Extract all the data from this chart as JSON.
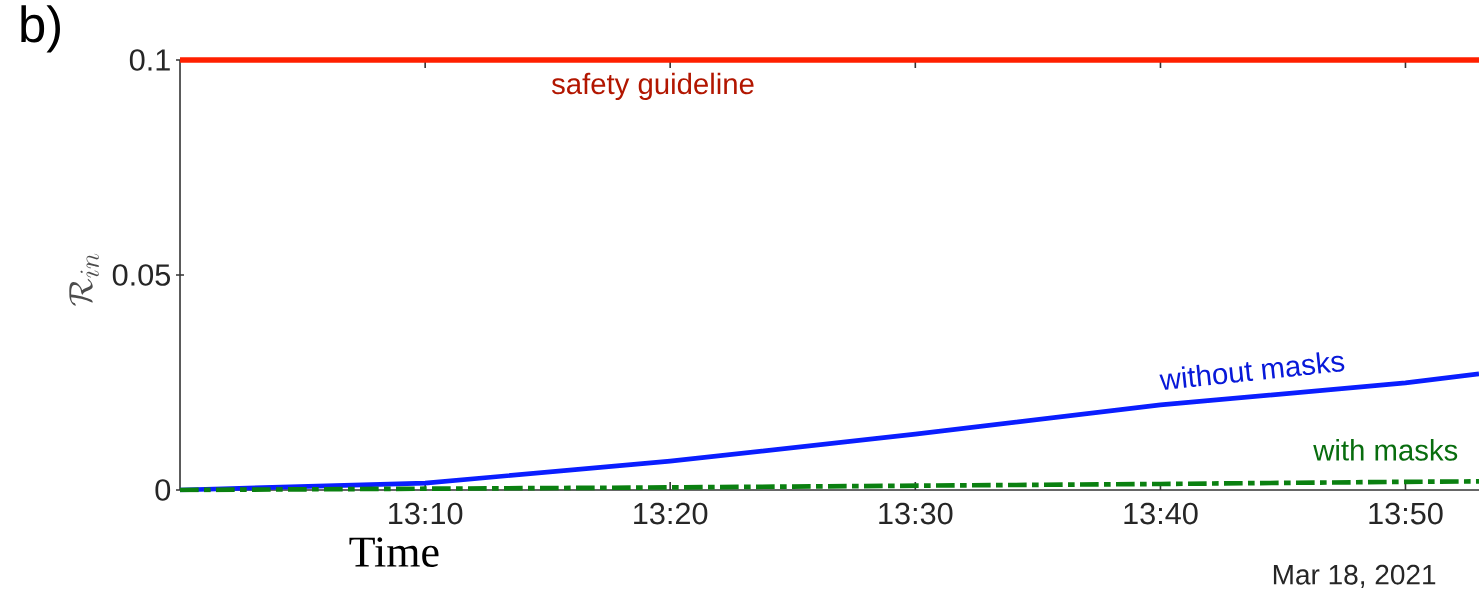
{
  "chart_data": {
    "type": "line",
    "xlabel": "Time",
    "ylabel": "\\mathcal{R}_{in}",
    "x": [
      13.0,
      13.1667,
      13.3333,
      13.5,
      13.6667,
      13.8333,
      13.8833
    ],
    "series": [
      {
        "name": "without masks",
        "color": "#0a1eff",
        "line_style": "solid",
        "values": [
          0,
          0.0016,
          0.0067,
          0.013,
          0.0198,
          0.0249,
          0.027
        ]
      },
      {
        "name": "with masks",
        "color": "#0a8010",
        "line_style": "dashed",
        "values": [
          0,
          0.0003,
          0.0006,
          0.001,
          0.0014,
          0.0019,
          0.002
        ]
      }
    ],
    "xlim": [
      13.0,
      13.8833
    ],
    "ylim": [
      0,
      0.1
    ],
    "xticks": [
      {
        "value": 13.1667,
        "label": "13:10"
      },
      {
        "value": 13.3333,
        "label": "13:20"
      },
      {
        "value": 13.5,
        "label": "13:30"
      },
      {
        "value": 13.6667,
        "label": "13:40"
      },
      {
        "value": 13.8333,
        "label": "13:50"
      }
    ],
    "yticks": [
      0,
      0.05,
      0.1
    ],
    "ref_lines": [
      {
        "axis": "y",
        "value": 0.1,
        "label": "safety guideline",
        "color": "#ff2000"
      }
    ],
    "annotations": [
      "b)",
      "Mar 18, 2021"
    ],
    "grid": false,
    "marker": "none"
  }
}
